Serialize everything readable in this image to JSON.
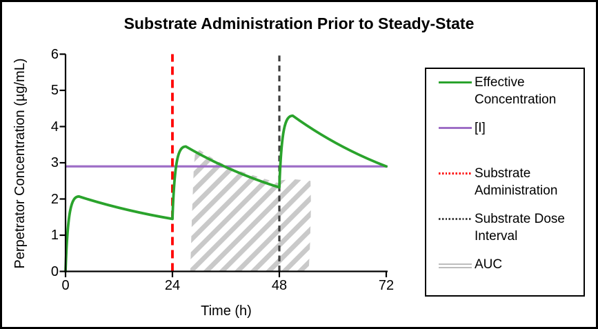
{
  "chart_data": {
    "type": "line",
    "title": "Substrate Administration Prior to Steady-State",
    "xlabel": "Time (h)",
    "ylabel": "Perpetrator Concentration (µg/mL)",
    "xlim": [
      0,
      72
    ],
    "ylim": [
      0,
      6
    ],
    "x_ticks": [
      "0",
      "24",
      "48",
      "72"
    ],
    "x_tick_values": [
      0,
      24,
      48,
      72
    ],
    "y_ticks": [
      "0",
      "1",
      "2",
      "3",
      "4",
      "5",
      "6"
    ],
    "y_tick_values": [
      0,
      1,
      2,
      3,
      4,
      5,
      6
    ],
    "grid": false,
    "legend_position": "right",
    "series": [
      {
        "name": "Effective Concentration",
        "color": "#2aa32c",
        "style": "solid",
        "dose_segments": [
          {
            "t_start": 0,
            "v_start": 0,
            "t_peak": 3,
            "v_peak": 2.07,
            "t_end": 24,
            "v_end": 1.45
          },
          {
            "t_start": 24,
            "v_start": 1.45,
            "t_peak": 27,
            "v_peak": 3.45,
            "t_end": 48,
            "v_end": 2.32
          },
          {
            "t_start": 48,
            "v_start": 2.32,
            "t_peak": 51,
            "v_peak": 4.3,
            "t_end": 72,
            "v_end": 2.9
          }
        ]
      },
      {
        "name": "[I]",
        "color": "#9e6ec6",
        "style": "solid",
        "constant_value": 2.9
      }
    ],
    "events": [
      {
        "name": "Substrate Administration",
        "t": 24,
        "color": "#ff0000",
        "style": "dashed"
      },
      {
        "name": "Substrate Dose Interval",
        "t": 48,
        "color": "#3f3f3f",
        "style": "dashed"
      }
    ],
    "auc_region": {
      "name": "AUC",
      "fill": "diagonal-hatch",
      "color": "#c9c9c9",
      "outline_tv": [
        [
          28,
          0
        ],
        [
          28.4,
          1.6
        ],
        [
          28.8,
          2.9
        ],
        [
          29.2,
          3.42
        ],
        [
          31,
          3.28
        ],
        [
          34,
          3.05
        ],
        [
          38,
          2.82
        ],
        [
          43,
          2.62
        ],
        [
          47.8,
          2.44
        ],
        [
          48.5,
          2.52
        ],
        [
          51,
          2.55
        ],
        [
          55,
          2.5
        ],
        [
          55.1,
          1.8
        ],
        [
          54.9,
          0.8
        ],
        [
          54.6,
          0
        ]
      ]
    }
  },
  "legend": {
    "items": [
      {
        "label": "Effective Concentration",
        "swatch": "solid-green-line",
        "color": "#2aa32c"
      },
      {
        "label": "[I]",
        "swatch": "solid-purple-line",
        "color": "#9e6ec6"
      },
      {
        "label": "Substrate Administration",
        "swatch": "dotted-red-line",
        "color": "#ff0000"
      },
      {
        "label": "Substrate Dose Interval",
        "swatch": "dotted-gray-line",
        "color": "#3f3f3f"
      },
      {
        "label": "AUC",
        "swatch": "double-gray-line",
        "color": "#bdbdbd"
      }
    ]
  }
}
